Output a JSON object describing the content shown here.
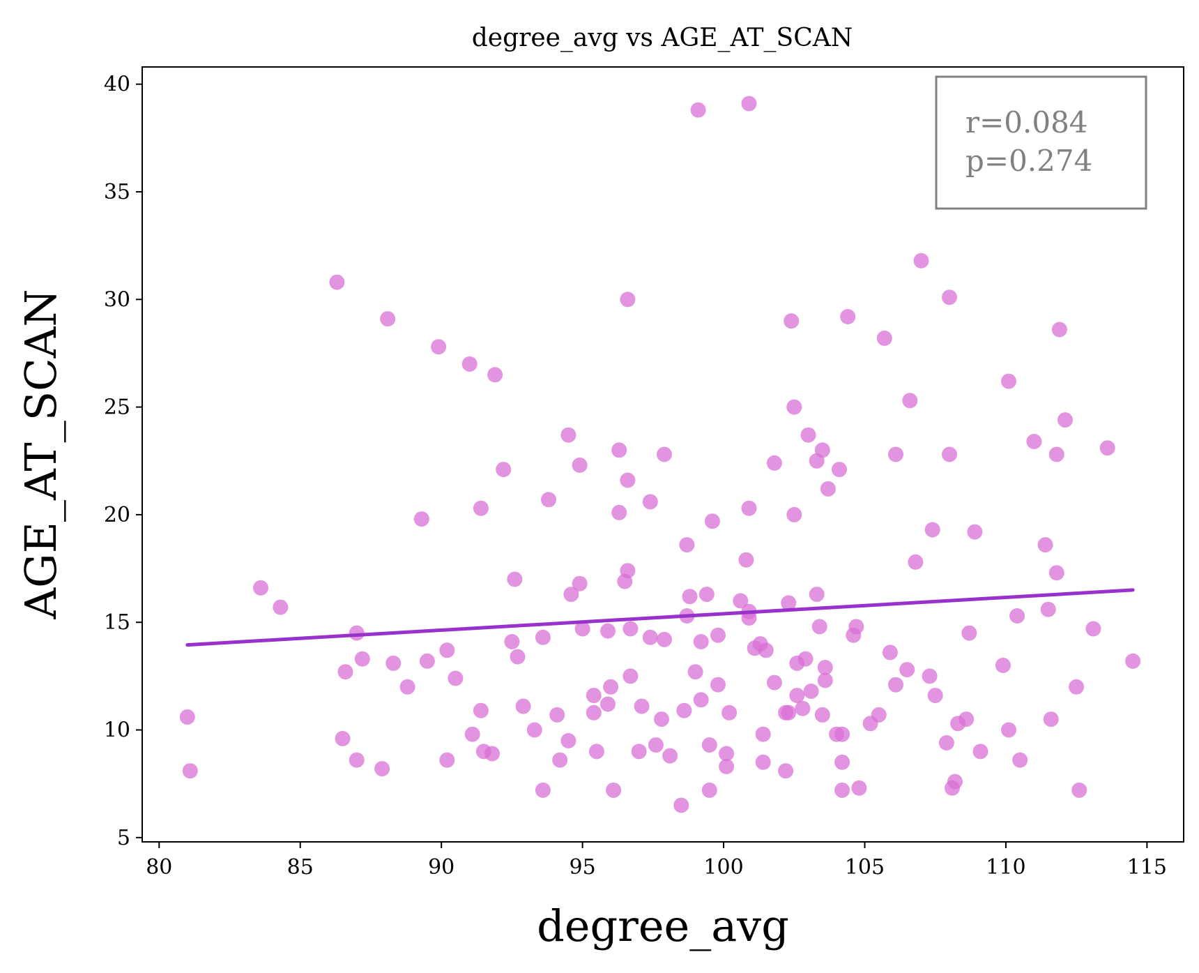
{
  "chart_data": {
    "type": "scatter",
    "title": "degree_avg vs AGE_AT_SCAN",
    "xlabel": "degree_avg",
    "ylabel": "AGE_AT_SCAN",
    "xlim": [
      79.4,
      116.3
    ],
    "ylim": [
      4.8,
      40.8
    ],
    "xticks": [
      80,
      85,
      90,
      95,
      100,
      105,
      110,
      115
    ],
    "yticks": [
      5,
      10,
      15,
      20,
      25,
      30,
      35,
      40
    ],
    "grid": false,
    "point_color": "#da70d6",
    "line_color": "#9932cc",
    "fit_line": {
      "x": [
        81.0,
        114.5
      ],
      "y": [
        13.95,
        16.5
      ]
    },
    "stats": {
      "r_text": "r=0.084",
      "p_text": "p=0.274",
      "placement": "top-right"
    },
    "points": [
      [
        81.0,
        10.6
      ],
      [
        81.1,
        8.1
      ],
      [
        83.6,
        16.6
      ],
      [
        84.3,
        15.7
      ],
      [
        86.3,
        30.8
      ],
      [
        86.6,
        12.7
      ],
      [
        86.5,
        9.6
      ],
      [
        87.0,
        14.5
      ],
      [
        87.0,
        8.6
      ],
      [
        87.2,
        13.3
      ],
      [
        87.9,
        8.2
      ],
      [
        88.1,
        29.1
      ],
      [
        88.3,
        13.1
      ],
      [
        88.8,
        12.0
      ],
      [
        89.3,
        19.8
      ],
      [
        89.5,
        13.2
      ],
      [
        89.9,
        27.8
      ],
      [
        90.2,
        13.7
      ],
      [
        90.2,
        8.6
      ],
      [
        90.5,
        12.4
      ],
      [
        91.0,
        27.0
      ],
      [
        91.1,
        9.8
      ],
      [
        91.4,
        20.3
      ],
      [
        91.4,
        10.9
      ],
      [
        91.5,
        9.0
      ],
      [
        91.8,
        8.9
      ],
      [
        91.9,
        26.5
      ],
      [
        92.2,
        22.1
      ],
      [
        92.5,
        14.1
      ],
      [
        92.6,
        17.0
      ],
      [
        92.7,
        13.4
      ],
      [
        92.9,
        11.1
      ],
      [
        93.3,
        10.0
      ],
      [
        93.6,
        14.3
      ],
      [
        93.6,
        7.2
      ],
      [
        93.8,
        20.7
      ],
      [
        94.1,
        10.7
      ],
      [
        94.2,
        8.6
      ],
      [
        94.5,
        23.7
      ],
      [
        94.5,
        9.5
      ],
      [
        94.6,
        16.3
      ],
      [
        94.9,
        16.8
      ],
      [
        94.9,
        22.3
      ],
      [
        95.0,
        14.7
      ],
      [
        95.4,
        11.6
      ],
      [
        95.4,
        10.8
      ],
      [
        95.5,
        9.0
      ],
      [
        95.9,
        14.6
      ],
      [
        95.9,
        11.2
      ],
      [
        96.0,
        12.0
      ],
      [
        96.1,
        7.2
      ],
      [
        96.3,
        23.0
      ],
      [
        96.3,
        20.1
      ],
      [
        96.5,
        16.9
      ],
      [
        96.6,
        17.4
      ],
      [
        96.6,
        21.6
      ],
      [
        96.6,
        30.0
      ],
      [
        96.7,
        12.5
      ],
      [
        96.7,
        14.7
      ],
      [
        97.0,
        9.0
      ],
      [
        97.1,
        11.1
      ],
      [
        97.4,
        14.3
      ],
      [
        97.4,
        20.6
      ],
      [
        97.6,
        9.3
      ],
      [
        97.9,
        22.8
      ],
      [
        97.9,
        14.2
      ],
      [
        97.8,
        10.5
      ],
      [
        98.1,
        8.8
      ],
      [
        98.5,
        6.5
      ],
      [
        98.7,
        18.6
      ],
      [
        98.7,
        15.3
      ],
      [
        98.8,
        16.2
      ],
      [
        98.6,
        10.9
      ],
      [
        99.0,
        12.7
      ],
      [
        99.1,
        38.8
      ],
      [
        99.2,
        11.4
      ],
      [
        99.2,
        14.1
      ],
      [
        99.4,
        16.3
      ],
      [
        99.5,
        9.3
      ],
      [
        99.5,
        7.2
      ],
      [
        99.6,
        19.7
      ],
      [
        99.8,
        14.4
      ],
      [
        99.8,
        12.1
      ],
      [
        100.1,
        8.9
      ],
      [
        100.1,
        8.3
      ],
      [
        100.2,
        10.8
      ],
      [
        100.6,
        16.0
      ],
      [
        100.8,
        17.9
      ],
      [
        100.9,
        39.1
      ],
      [
        100.9,
        20.3
      ],
      [
        100.9,
        15.5
      ],
      [
        100.9,
        15.2
      ],
      [
        101.1,
        13.8
      ],
      [
        101.3,
        14.0
      ],
      [
        101.4,
        9.8
      ],
      [
        101.5,
        13.7
      ],
      [
        101.4,
        8.5
      ],
      [
        101.8,
        22.4
      ],
      [
        101.8,
        12.2
      ],
      [
        102.2,
        10.8
      ],
      [
        102.2,
        8.1
      ],
      [
        102.3,
        15.9
      ],
      [
        102.3,
        10.8
      ],
      [
        102.4,
        29.0
      ],
      [
        102.5,
        25.0
      ],
      [
        102.5,
        20.0
      ],
      [
        102.6,
        13.1
      ],
      [
        102.6,
        11.6
      ],
      [
        102.8,
        11.0
      ],
      [
        102.9,
        13.3
      ],
      [
        103.0,
        23.7
      ],
      [
        103.1,
        11.8
      ],
      [
        103.3,
        16.3
      ],
      [
        103.3,
        22.5
      ],
      [
        103.4,
        14.8
      ],
      [
        103.5,
        10.7
      ],
      [
        103.5,
        23.0
      ],
      [
        103.6,
        12.9
      ],
      [
        103.6,
        12.3
      ],
      [
        103.7,
        21.2
      ],
      [
        104.0,
        9.8
      ],
      [
        104.1,
        22.1
      ],
      [
        104.2,
        9.8
      ],
      [
        104.2,
        8.5
      ],
      [
        104.2,
        7.2
      ],
      [
        104.4,
        29.2
      ],
      [
        104.6,
        14.4
      ],
      [
        104.7,
        14.8
      ],
      [
        104.8,
        7.3
      ],
      [
        105.2,
        10.3
      ],
      [
        105.5,
        10.7
      ],
      [
        105.7,
        28.2
      ],
      [
        105.9,
        13.6
      ],
      [
        106.1,
        12.1
      ],
      [
        106.1,
        22.8
      ],
      [
        106.5,
        12.8
      ],
      [
        106.6,
        25.3
      ],
      [
        106.8,
        17.8
      ],
      [
        107.0,
        31.8
      ],
      [
        107.3,
        12.5
      ],
      [
        107.4,
        19.3
      ],
      [
        107.5,
        11.6
      ],
      [
        107.9,
        9.4
      ],
      [
        108.0,
        30.1
      ],
      [
        108.0,
        22.8
      ],
      [
        108.1,
        7.3
      ],
      [
        108.2,
        7.6
      ],
      [
        108.3,
        10.3
      ],
      [
        108.6,
        10.5
      ],
      [
        108.7,
        14.5
      ],
      [
        108.9,
        19.2
      ],
      [
        109.1,
        9.0
      ],
      [
        109.9,
        13.0
      ],
      [
        110.1,
        26.2
      ],
      [
        110.1,
        10.0
      ],
      [
        110.4,
        15.3
      ],
      [
        110.5,
        8.6
      ],
      [
        111.0,
        23.4
      ],
      [
        111.4,
        18.6
      ],
      [
        111.5,
        15.6
      ],
      [
        111.6,
        10.5
      ],
      [
        111.8,
        17.3
      ],
      [
        111.8,
        22.8
      ],
      [
        111.9,
        28.6
      ],
      [
        112.1,
        24.4
      ],
      [
        112.5,
        12.0
      ],
      [
        112.6,
        7.2
      ],
      [
        113.1,
        14.7
      ],
      [
        113.6,
        23.1
      ],
      [
        114.5,
        13.2
      ]
    ]
  }
}
